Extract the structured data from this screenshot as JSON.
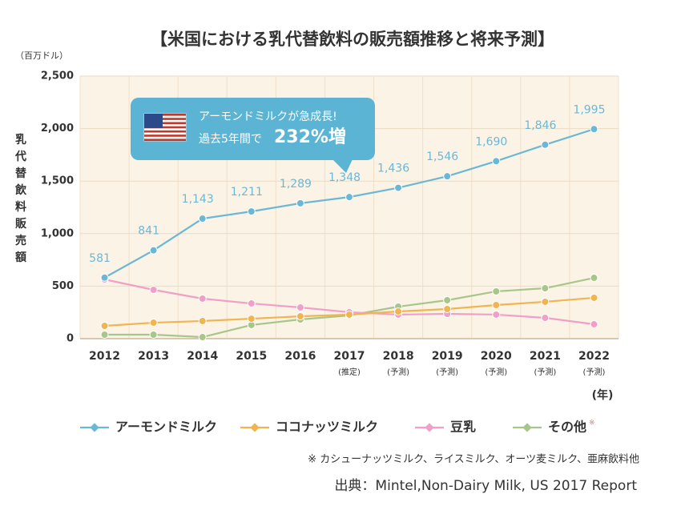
{
  "chart_data": {
    "type": "line",
    "title": "【米国における乳代替飲料の販売額推移と将来予測】",
    "y_unit": "（百万ドル）",
    "y_label": "乳代替飲料販売額",
    "x_label": "(年)",
    "categories": [
      "2012",
      "2013",
      "2014",
      "2015",
      "2016",
      "2017",
      "2018",
      "2019",
      "2020",
      "2021",
      "2022"
    ],
    "category_notes": [
      null,
      null,
      null,
      null,
      null,
      "(推定)",
      "(予測)",
      "(予測)",
      "(予測)",
      "(予測)",
      "(予測)"
    ],
    "ylim": [
      0,
      2500
    ],
    "yticks": [
      0,
      500,
      {
        "value": 1000,
        "label": "1,000"
      },
      {
        "value": 1500,
        "label": "1,500"
      },
      {
        "value": 2000,
        "label": "2,000"
      },
      {
        "value": 2500,
        "label": "2,500"
      }
    ],
    "grid": true,
    "series": [
      {
        "name": "アーモンドミルク",
        "color": "#6bb8d6",
        "values": [
          581,
          841,
          1143,
          1211,
          1289,
          1348,
          1436,
          1546,
          1690,
          1846,
          1995
        ],
        "value_labels": [
          "581",
          "841",
          "1,143",
          "1,211",
          "1,289",
          "1,348",
          "1,436",
          "1,546",
          "1,690",
          "1,846",
          "1,995"
        ]
      },
      {
        "name": "ココナッツミルク",
        "color": "#f0b450",
        "values": [
          122,
          152,
          168,
          190,
          213,
          229,
          259,
          282,
          320,
          351,
          389
        ]
      },
      {
        "name": "豆乳",
        "color": "#f0a0c8",
        "values": [
          564,
          465,
          381,
          335,
          297,
          252,
          229,
          236,
          229,
          198,
          137
        ]
      },
      {
        "name": "その他",
        "color": "#a8c68a",
        "values": [
          38,
          38,
          15,
          130,
          183,
          221,
          305,
          366,
          450,
          480,
          579
        ]
      }
    ],
    "legend_note_mark": "※",
    "callout": {
      "line1": "アーモンドミルクが急成長!",
      "line2": "過去5年間で",
      "emphasis": "232%増"
    },
    "footnote": "※ カシューナッツミルク、ライスミルク、オーツ麦ミルク、亜麻飲料他",
    "source": "出典：Mintel,Non-Dairy Milk, US 2017 Report"
  }
}
